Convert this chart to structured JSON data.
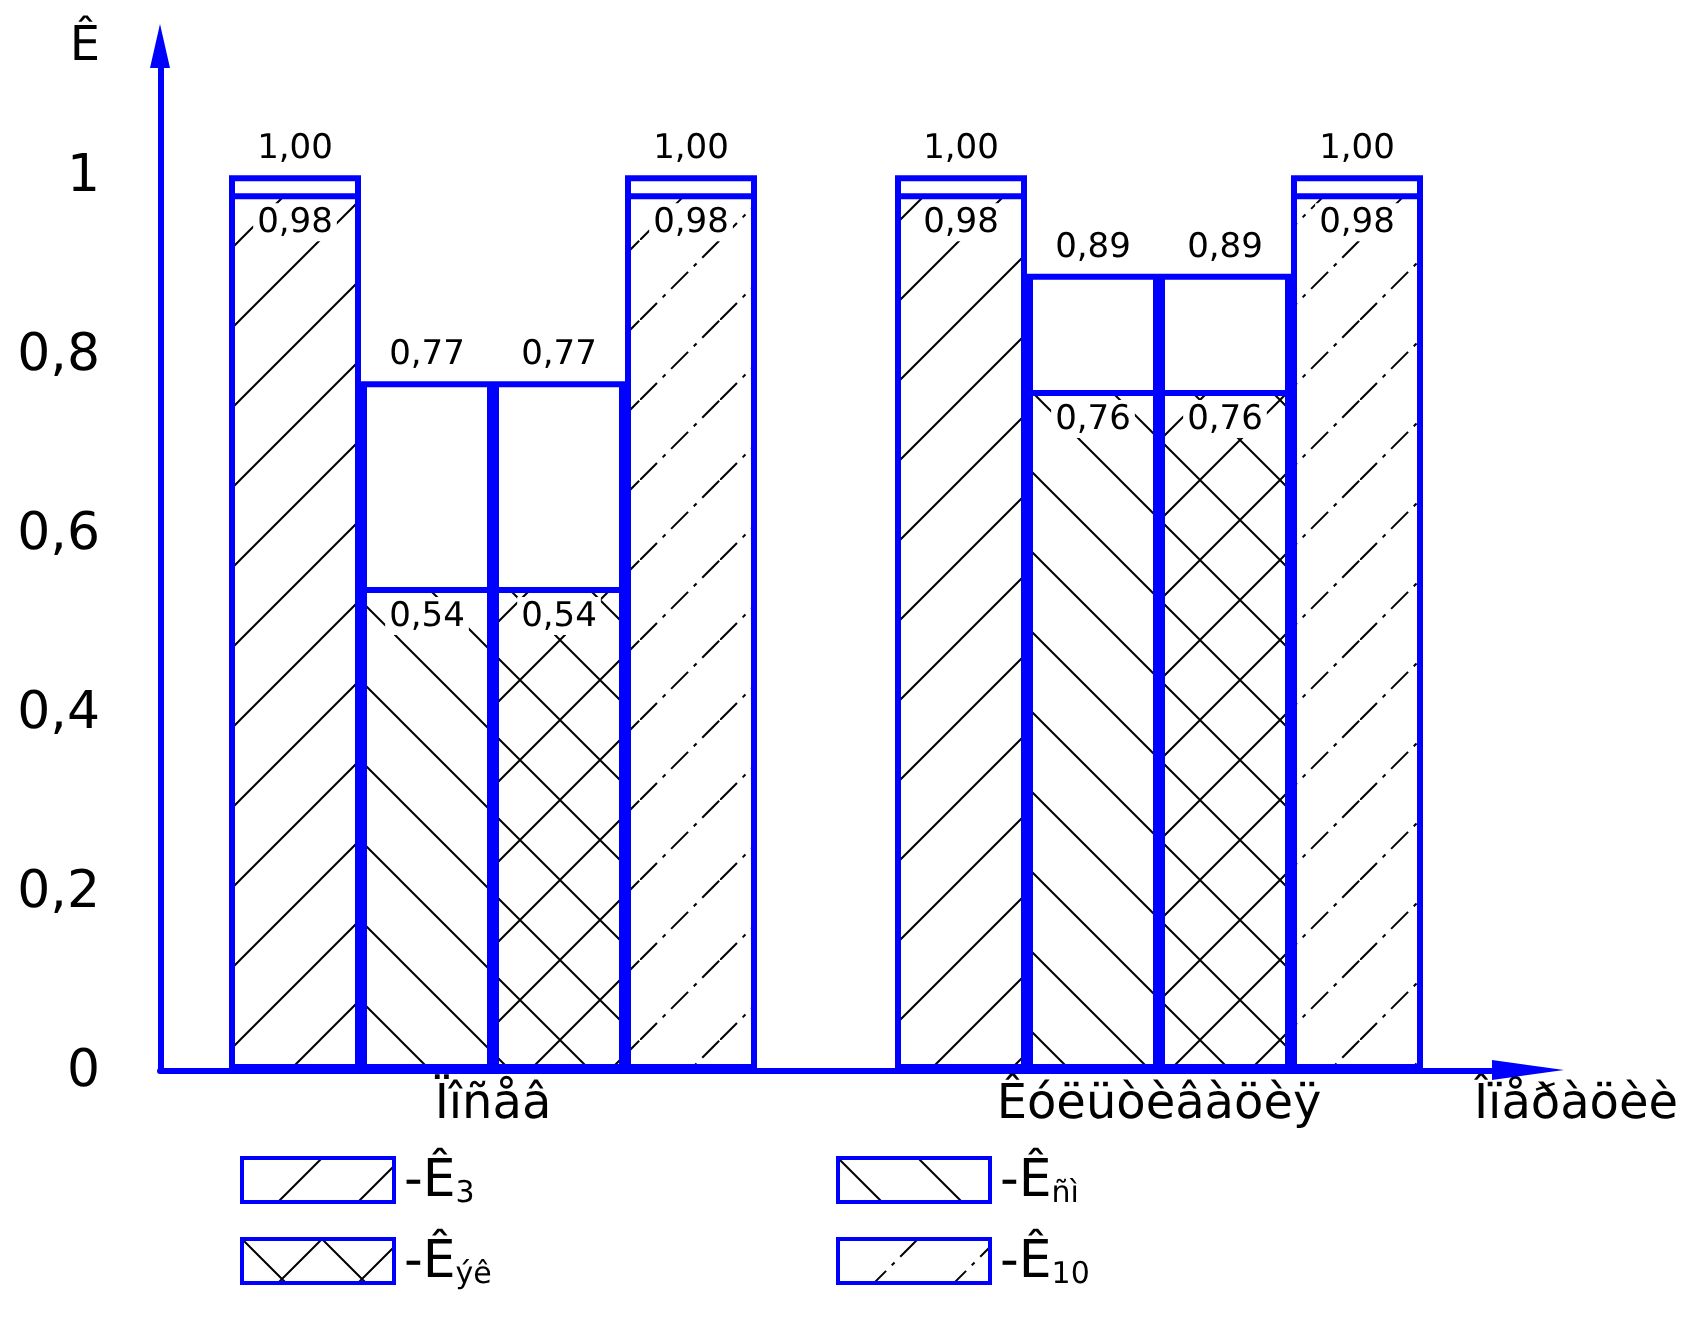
{
  "chart_data": {
    "type": "bar",
    "ylabel": "Ê",
    "xlabel": "Îïåðàöèè",
    "categories": [
      "Ïîñåâ",
      "Êóëüòèâàöèÿ"
    ],
    "ylim": [
      0,
      1.12
    ],
    "yticks": [
      0,
      {
        "value": 0.2,
        "label": "0,2"
      },
      {
        "value": 0.4,
        "label": "0,4"
      },
      {
        "value": 0.6,
        "label": "0,6"
      },
      {
        "value": 0.8,
        "label": "0,8"
      },
      1
    ],
    "grid": false,
    "legend": "bottom",
    "series": [
      {
        "color": "#0000ff",
        "values": [
          1.0,
          1.0
        ],
        "value_labels": [
          "1,00",
          "1,00"
        ]
      },
      {
        "color": "#0000ff",
        "values": [
          0.77,
          0.89
        ],
        "value_labels": [
          "0,77",
          "0,89"
        ]
      },
      {
        "color": "#0000ff",
        "values": [
          0.77,
          0.89
        ],
        "value_labels": [
          "0,77",
          "0,89"
        ]
      },
      {
        "color": "#0000ff",
        "values": [
          1.0,
          1.0
        ],
        "value_labels": [
          "1,00",
          "1,00"
        ]
      },
      {
        "name": "-Ê$_{3}$",
        "color": "#0000ff",
        "values": [
          0.98,
          0.98
        ],
        "value_labels": [
          "0,98",
          "0,98"
        ]
      },
      {
        "name": "-Ê$_{ñì}$",
        "color": "#0000ff",
        "values": [
          0.54,
          0.76
        ],
        "value_labels": [
          "0,54",
          "0,76"
        ]
      },
      {
        "name": "-Ê$_{ýê}$",
        "color": "#0000ff",
        "values": [
          0.54,
          0.76
        ],
        "value_labels": [
          "0,54",
          "0,76"
        ]
      },
      {
        "name": "-Ê$_{10}$",
        "color": "#0000ff",
        "values": [
          0.98,
          0.98
        ],
        "value_labels": [
          "0,98",
          "0,98"
        ]
      }
    ]
  }
}
